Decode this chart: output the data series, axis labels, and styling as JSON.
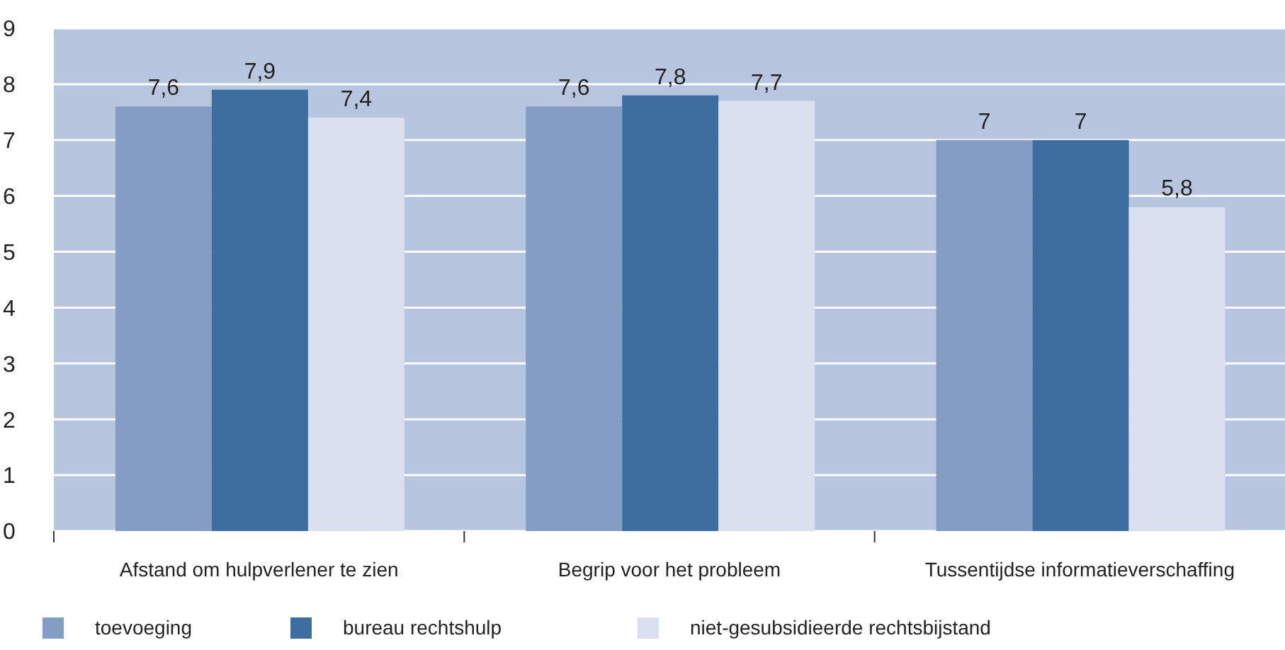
{
  "chart_data": {
    "type": "bar",
    "categories": [
      "Afstand om hulpverlener te zien",
      "Begrip voor het probleem",
      "Tussentijdse informatieverschaffing"
    ],
    "series": [
      {
        "name": "toevoeging",
        "color": "#849dc4",
        "values": [
          7.6,
          7.6,
          7
        ],
        "value_labels": [
          "7,6",
          "7,6",
          "7"
        ]
      },
      {
        "name": "bureau rechtshulp",
        "color": "#3c6ea0",
        "values": [
          7.9,
          7.8,
          7
        ],
        "value_labels": [
          "7,9",
          "7,8",
          "7"
        ]
      },
      {
        "name": "niet-gesubsidieerde rechtsbijstand",
        "color": "#dae0ef",
        "values": [
          7.4,
          7.7,
          5.8
        ],
        "value_labels": [
          "7,4",
          "7,7",
          "5,8"
        ]
      }
    ],
    "ylim": [
      0,
      9
    ],
    "yticks": [
      0,
      1,
      2,
      3,
      4,
      5,
      6,
      7,
      8,
      9
    ],
    "grid": "y",
    "legend": "bottom left"
  }
}
